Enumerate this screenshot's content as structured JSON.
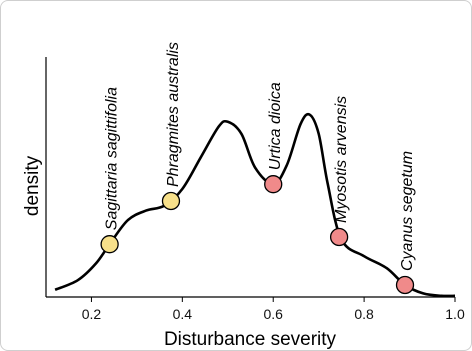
{
  "chart_data": {
    "type": "line",
    "xlabel": "Disturbance severity",
    "ylabel": "density",
    "xlim": [
      0.1,
      1.0
    ],
    "ylim": [
      0,
      1.0
    ],
    "x_ticks": [
      "0.2",
      "0.4",
      "0.6",
      "0.8",
      "1.0"
    ],
    "grid": false,
    "colors": {
      "curve": "#000000",
      "yellow_point": "#f7e08a",
      "red_point": "#f08a8a"
    },
    "curve": {
      "x": [
        0.12,
        0.17,
        0.21,
        0.24,
        0.28,
        0.32,
        0.36,
        0.4,
        0.44,
        0.48,
        0.5,
        0.53,
        0.56,
        0.6,
        0.63,
        0.66,
        0.68,
        0.7,
        0.72,
        0.75,
        0.8,
        0.85,
        0.89,
        0.93,
        0.97,
        1.0
      ],
      "y": [
        0.03,
        0.07,
        0.14,
        0.22,
        0.32,
        0.36,
        0.38,
        0.45,
        0.58,
        0.71,
        0.73,
        0.68,
        0.54,
        0.47,
        0.55,
        0.72,
        0.76,
        0.68,
        0.47,
        0.24,
        0.17,
        0.12,
        0.05,
        0.015,
        0.005,
        0.005
      ]
    },
    "points": [
      {
        "label": "Sagittaria sagittifolia",
        "x": 0.24,
        "y": 0.22,
        "color": "yellow"
      },
      {
        "label": "Phragmites australis",
        "x": 0.375,
        "y": 0.4,
        "color": "yellow"
      },
      {
        "label": "Urtica dioica",
        "x": 0.6,
        "y": 0.47,
        "color": "red"
      },
      {
        "label": "Myosotis arvensis",
        "x": 0.745,
        "y": 0.25,
        "color": "red"
      },
      {
        "label": "Cyanus segetum",
        "x": 0.89,
        "y": 0.05,
        "color": "red"
      }
    ]
  }
}
